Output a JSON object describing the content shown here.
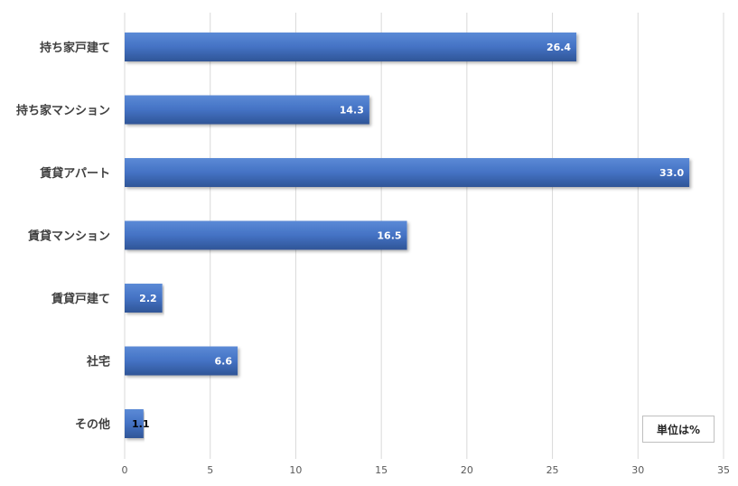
{
  "chart_data": {
    "type": "bar",
    "orientation": "horizontal",
    "categories": [
      "持ち家戸建て",
      "持ち家マンション",
      "賃貸アパート",
      "賃貸マンション",
      "賃貸戸建て",
      "社宅",
      "その他"
    ],
    "values": [
      26.4,
      14.3,
      33.0,
      16.5,
      2.2,
      6.6,
      1.1
    ],
    "value_labels": [
      "26.4",
      "14.3",
      "33.0",
      "16.5",
      "2.2",
      "6.6",
      "1.1"
    ],
    "xlim": [
      0,
      35
    ],
    "xticks": [
      0,
      5,
      10,
      15,
      20,
      25,
      30,
      35
    ],
    "grid": "vertical",
    "colors": {
      "bar": "#4472c4",
      "bar_dark": "#2f5597",
      "label_inside": "#ffffff",
      "label_outside": "#000000",
      "grid": "#d9d9d9",
      "axis_text": "#595959"
    }
  },
  "unit_note": "単位は%"
}
